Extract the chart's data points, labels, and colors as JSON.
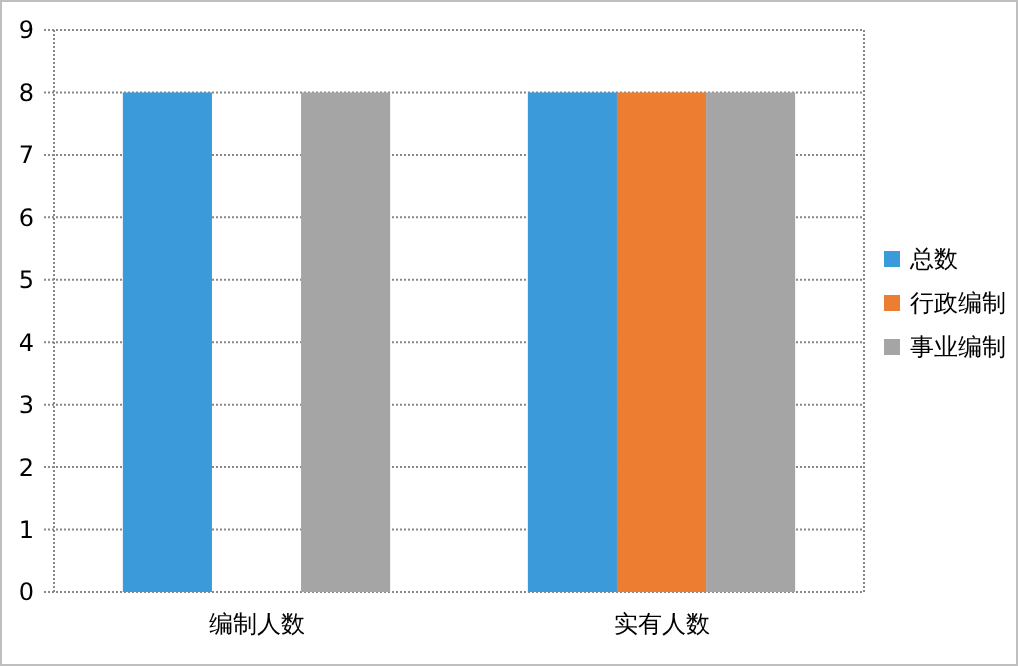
{
  "chart_data": {
    "type": "bar",
    "categories": [
      "编制人数",
      "实有人数"
    ],
    "series": [
      {
        "name": "总数",
        "color": "#3b9ad9",
        "values": [
          8,
          8
        ]
      },
      {
        "name": "行政编制",
        "color": "#ed7d31",
        "values": [
          null,
          8
        ]
      },
      {
        "name": "事业编制",
        "color": "#a5a5a5",
        "values": [
          8,
          8
        ]
      }
    ],
    "ylim": [
      0,
      9
    ],
    "yticks": [
      0,
      1,
      2,
      3,
      4,
      5,
      6,
      7,
      8,
      9
    ],
    "grid": "y",
    "legend": "right"
  }
}
